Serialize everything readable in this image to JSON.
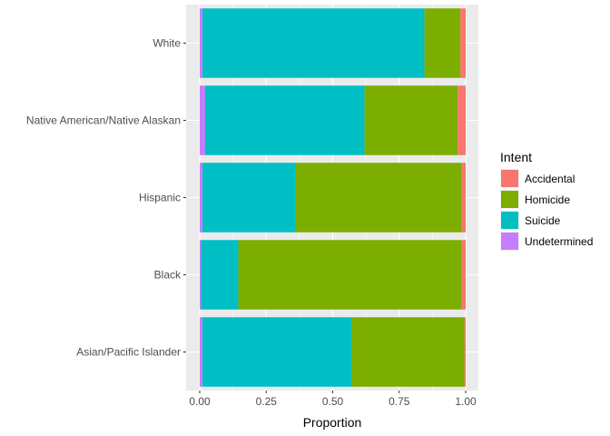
{
  "chart_data": {
    "type": "bar",
    "orientation": "horizontal",
    "stacked": true,
    "categories": [
      "White",
      "Native American/Native Alaskan",
      "Hispanic",
      "Black",
      "Asian/Pacific Islander"
    ],
    "series": [
      {
        "name": "Undetermined",
        "color": "#C77CFF",
        "values": [
          0.01,
          0.02,
          0.01,
          0.005,
          0.01
        ]
      },
      {
        "name": "Suicide",
        "color": "#00BFC4",
        "values": [
          0.835,
          0.6,
          0.35,
          0.14,
          0.56
        ]
      },
      {
        "name": "Homicide",
        "color": "#7CAE00",
        "values": [
          0.135,
          0.35,
          0.625,
          0.84,
          0.425
        ]
      },
      {
        "name": "Accidental",
        "color": "#F8766D",
        "values": [
          0.02,
          0.03,
          0.015,
          0.015,
          0.005
        ]
      }
    ],
    "xlabel": "Proportion",
    "ylabel": "",
    "xlim": [
      0,
      1
    ],
    "x_ticks": [
      "0.00",
      "0.25",
      "0.50",
      "0.75",
      "1.00"
    ],
    "x_tick_values": [
      0,
      0.25,
      0.5,
      0.75,
      1.0
    ],
    "grid": true,
    "background_color": "#EBEBEB",
    "gridline_color": "#FFFFFF",
    "legend": {
      "title": "Intent",
      "placement": "right",
      "entries": [
        "Accidental",
        "Homicide",
        "Suicide",
        "Undetermined"
      ]
    }
  }
}
